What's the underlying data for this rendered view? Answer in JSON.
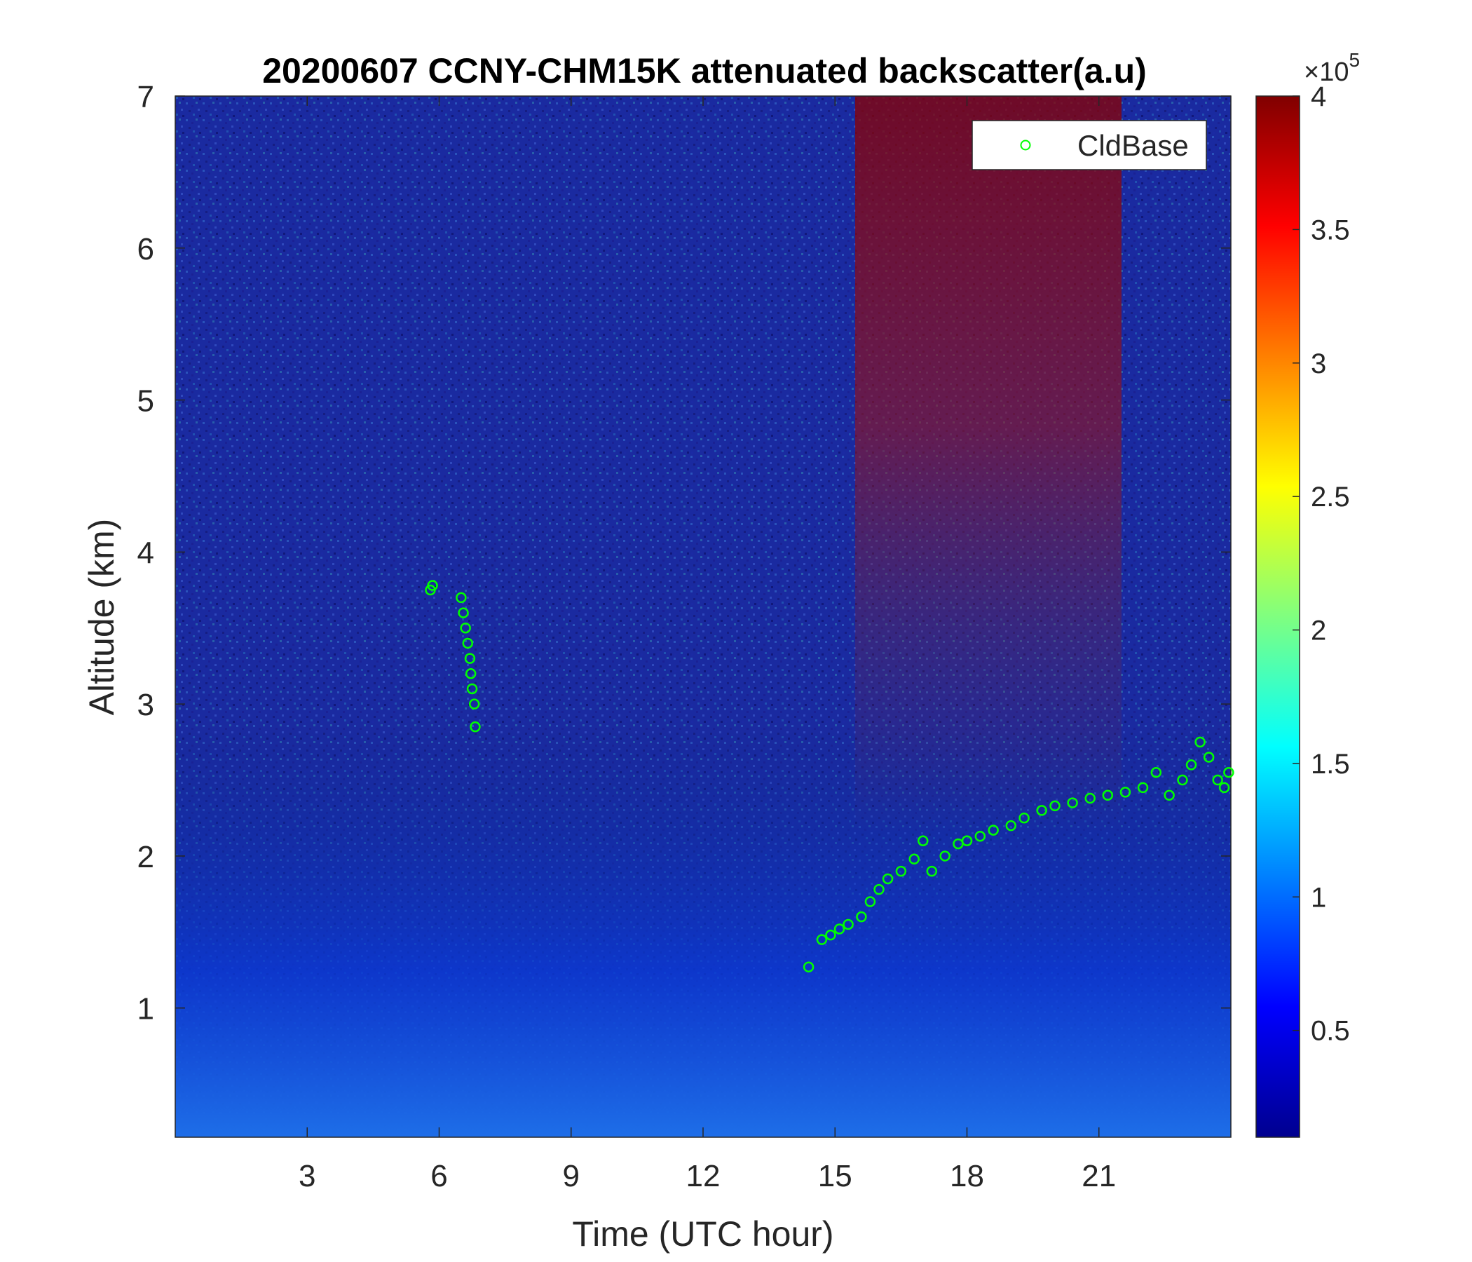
{
  "chart_data": {
    "type": "heatmap",
    "title": "20200607 CCNY-CHM15K attenuated backscatter(a.u)",
    "xlabel": "Time (UTC hour)",
    "ylabel": "Altitude (km)",
    "xlim": [
      0,
      24
    ],
    "ylim": [
      0.15,
      7
    ],
    "xticks": [
      3,
      6,
      9,
      12,
      15,
      18,
      21
    ],
    "yticks": [
      1,
      2,
      3,
      4,
      5,
      6,
      7
    ],
    "colormap": "jet",
    "colorbar": {
      "lim": [
        0.1,
        4
      ],
      "ticks": [
        0.5,
        1,
        1.5,
        2,
        2.5,
        3,
        3.5,
        4
      ],
      "exponent_label": "×10",
      "exponent_power": "5"
    },
    "legend": {
      "entries": [
        "CldBase"
      ],
      "position": "top-right",
      "marker_color": "#00ff00"
    },
    "series": [
      {
        "name": "CldBase",
        "marker": "circle",
        "color": "#00ff00",
        "x": [
          5.8,
          5.85,
          6.5,
          6.55,
          6.6,
          6.65,
          6.7,
          6.72,
          6.75,
          6.8,
          6.82,
          14.4,
          14.7,
          14.9,
          15.1,
          15.3,
          15.6,
          15.8,
          16.0,
          16.2,
          16.5,
          16.8,
          17.0,
          17.2,
          17.5,
          17.8,
          18.0,
          18.3,
          18.6,
          19.0,
          19.3,
          19.7,
          20.0,
          20.4,
          20.8,
          21.2,
          21.6,
          22.0,
          22.3,
          22.6,
          22.9,
          23.1,
          23.3,
          23.5,
          23.7,
          23.85,
          23.95
        ],
        "y": [
          3.75,
          3.78,
          3.7,
          3.6,
          3.5,
          3.4,
          3.3,
          3.2,
          3.1,
          3.0,
          2.85,
          1.27,
          1.45,
          1.48,
          1.52,
          1.55,
          1.6,
          1.7,
          1.78,
          1.85,
          1.9,
          1.98,
          2.1,
          1.9,
          2.0,
          2.08,
          2.1,
          2.13,
          2.17,
          2.2,
          2.25,
          2.3,
          2.33,
          2.35,
          2.38,
          2.4,
          2.42,
          2.45,
          2.55,
          2.4,
          2.5,
          2.6,
          2.75,
          2.65,
          2.5,
          2.45,
          2.55
        ]
      }
    ]
  }
}
